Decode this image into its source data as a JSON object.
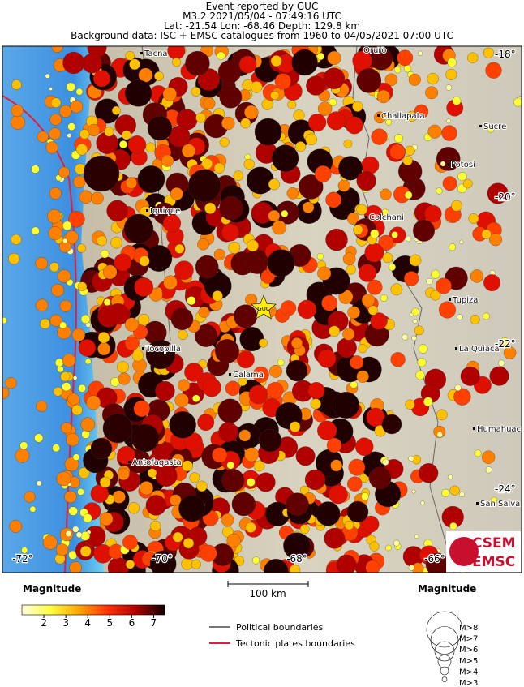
{
  "header": {
    "lines": [
      "Event reported by GUC",
      "M3.2  2021/05/04 - 07:49:16 UTC",
      "Lat: -21.54    Lon: -68.46      Depth: 129.8 km",
      "Background data: ISC + EMSC catalogues from 1960 to 04/05/2021 07:00 UTC"
    ]
  },
  "map": {
    "places": [
      "Tacna",
      "Oruro",
      "Challapata",
      "Sucre",
      "Potosi",
      "Iquique",
      "Colchani",
      "Tupiza",
      "Tocopilla",
      "Calama",
      "La Quiaca",
      "Humahuaca",
      "Antofagasta",
      "San Salva"
    ],
    "event": "GUC",
    "lat_labels": [
      "-18°",
      "-20°",
      "-22°",
      "-24°"
    ],
    "lon_labels": [
      "-72°",
      "-70°",
      "-68°",
      "-66°"
    ],
    "logo": [
      "CSEM",
      "EMSC"
    ]
  },
  "legend": {
    "color_title": "Magnitude",
    "color_ticks": [
      2,
      3,
      4,
      5,
      6,
      7
    ],
    "scale_bar": "100 km",
    "lines": [
      "Political boundaries",
      "Tectonic plates boundaries"
    ],
    "size_title": "Magnitude",
    "sizes": [
      "M>8",
      "M>7",
      "M>6",
      "M>5",
      "M>4",
      "M>3"
    ]
  }
}
